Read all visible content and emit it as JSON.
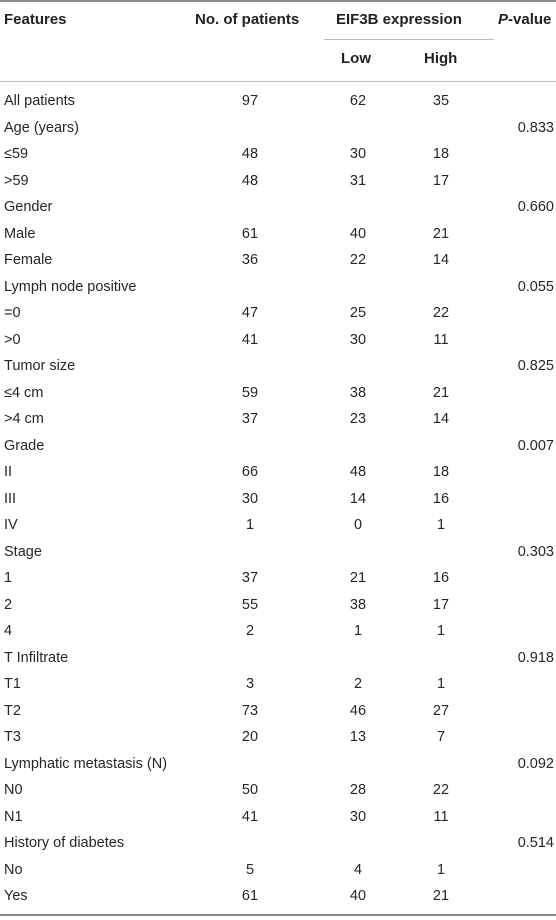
{
  "header": {
    "features": "Features",
    "patients": "No. of patients",
    "expression": "EIF3B expression",
    "low": "Low",
    "high": "High",
    "p_prefix": "P",
    "p_suffix": "-value"
  },
  "rows": [
    {
      "feature": "All patients",
      "n": "97",
      "low": "62",
      "high": "35",
      "p": ""
    },
    {
      "feature": "Age (years)",
      "n": "",
      "low": "",
      "high": "",
      "p": "0.833"
    },
    {
      "feature": "≤59",
      "n": "48",
      "low": "30",
      "high": "18",
      "p": ""
    },
    {
      "feature": ">59",
      "n": "48",
      "low": "31",
      "high": "17",
      "p": ""
    },
    {
      "feature": "Gender",
      "n": "",
      "low": "",
      "high": "",
      "p": "0.660"
    },
    {
      "feature": "Male",
      "n": "61",
      "low": "40",
      "high": "21",
      "p": ""
    },
    {
      "feature": "Female",
      "n": "36",
      "low": "22",
      "high": "14",
      "p": ""
    },
    {
      "feature": "Lymph node positive",
      "n": "",
      "low": "",
      "high": "",
      "p": "0.055"
    },
    {
      "feature": "=0",
      "n": "47",
      "low": "25",
      "high": "22",
      "p": ""
    },
    {
      "feature": ">0",
      "n": "41",
      "low": "30",
      "high": "11",
      "p": ""
    },
    {
      "feature": "Tumor size",
      "n": "",
      "low": "",
      "high": "",
      "p": "0.825"
    },
    {
      "feature": "≤4 cm",
      "n": "59",
      "low": "38",
      "high": "21",
      "p": ""
    },
    {
      "feature": ">4 cm",
      "n": "37",
      "low": "23",
      "high": "14",
      "p": ""
    },
    {
      "feature": "Grade",
      "n": "",
      "low": "",
      "high": "",
      "p": "0.007"
    },
    {
      "feature": "II",
      "n": "66",
      "low": "48",
      "high": "18",
      "p": ""
    },
    {
      "feature": "III",
      "n": "30",
      "low": "14",
      "high": "16",
      "p": ""
    },
    {
      "feature": "IV",
      "n": "1",
      "low": "0",
      "high": "1",
      "p": ""
    },
    {
      "feature": "Stage",
      "n": "",
      "low": "",
      "high": "",
      "p": "0.303"
    },
    {
      "feature": "1",
      "n": "37",
      "low": "21",
      "high": "16",
      "p": ""
    },
    {
      "feature": "2",
      "n": "55",
      "low": "38",
      "high": "17",
      "p": ""
    },
    {
      "feature": "4",
      "n": "2",
      "low": "1",
      "high": "1",
      "p": ""
    },
    {
      "feature": "T Infiltrate",
      "n": "",
      "low": "",
      "high": "",
      "p": "0.918"
    },
    {
      "feature": "T1",
      "n": "3",
      "low": "2",
      "high": "1",
      "p": ""
    },
    {
      "feature": "T2",
      "n": "73",
      "low": "46",
      "high": "27",
      "p": ""
    },
    {
      "feature": "T3",
      "n": "20",
      "low": "13",
      "high": "7",
      "p": ""
    },
    {
      "feature": "Lymphatic metastasis (N)",
      "n": "",
      "low": "",
      "high": "",
      "p": "0.092"
    },
    {
      "feature": "N0",
      "n": "50",
      "low": "28",
      "high": "22",
      "p": ""
    },
    {
      "feature": "N1",
      "n": "41",
      "low": "30",
      "high": "11",
      "p": ""
    },
    {
      "feature": "History of diabetes",
      "n": "",
      "low": "",
      "high": "",
      "p": "0.514"
    },
    {
      "feature": "No",
      "n": "5",
      "low": "4",
      "high": "1",
      "p": ""
    },
    {
      "feature": "Yes",
      "n": "61",
      "low": "40",
      "high": "21",
      "p": ""
    }
  ]
}
